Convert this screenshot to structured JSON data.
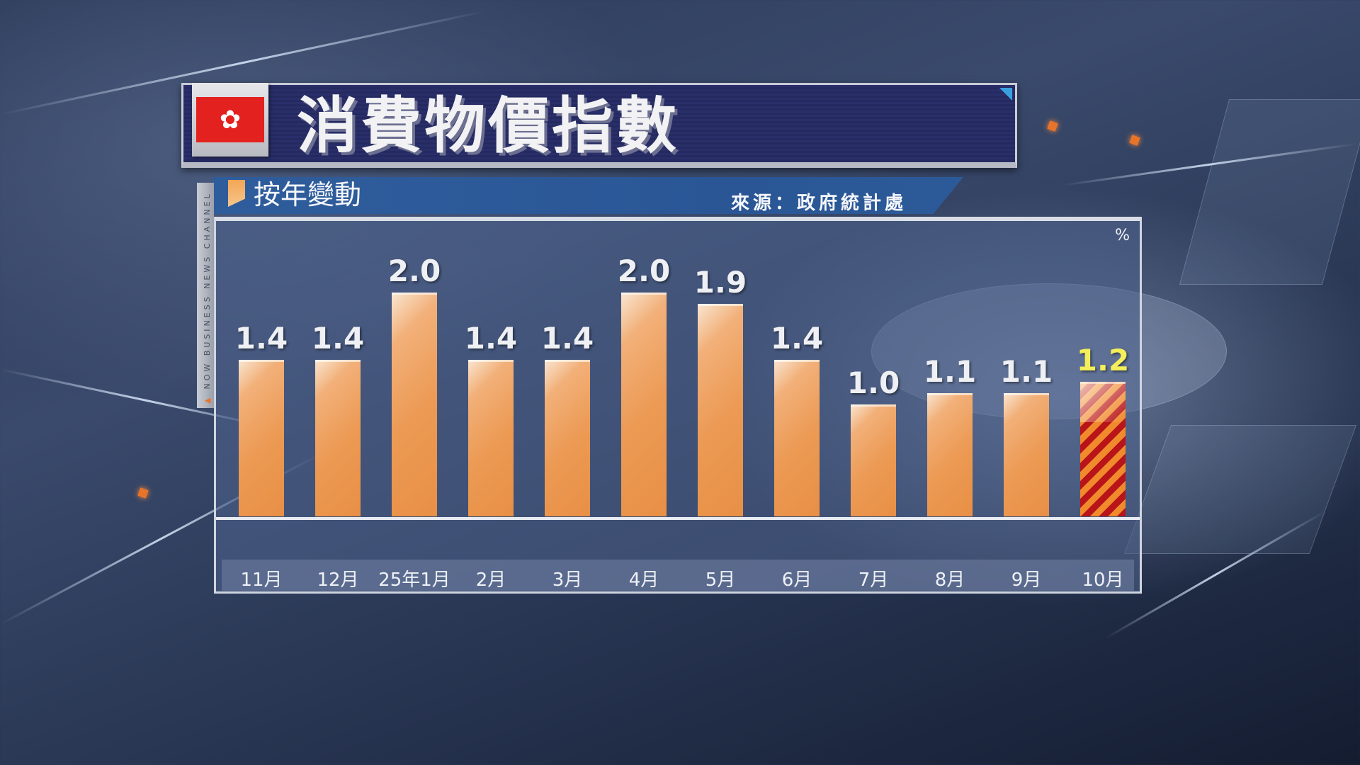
{
  "header": {
    "title": "消費物價指數",
    "flag_icon": "hong-kong-flag-icon",
    "flag_symbol": "✿"
  },
  "subheader": {
    "label": "按年變動",
    "source": "來源：政府統計處"
  },
  "channel": {
    "side_label": "NOW BUSINESS NEWS CHANNEL",
    "marker": "▲"
  },
  "chart": {
    "unit": "%",
    "bar_color": "#ec9a54",
    "highlight_colors": [
      "#f08a2c",
      "#b8141a"
    ],
    "highlight_value_color": "#f4ee5a"
  },
  "chart_data": {
    "type": "bar",
    "title": "消費物價指數",
    "subtitle": "按年變動",
    "source": "來源：政府統計處",
    "xlabel": "",
    "ylabel": "%",
    "categories": [
      "11月",
      "12月",
      "25年1月",
      "2月",
      "3月",
      "4月",
      "5月",
      "6月",
      "7月",
      "8月",
      "9月",
      "10月"
    ],
    "values": [
      1.4,
      1.4,
      2.0,
      1.4,
      1.4,
      2.0,
      1.9,
      1.4,
      1.0,
      1.1,
      1.1,
      1.2
    ],
    "value_labels": [
      "1.4",
      "1.4",
      "2.0",
      "1.4",
      "1.4",
      "2.0",
      "1.9",
      "1.4",
      "1.0",
      "1.1",
      "1.1",
      "1.2"
    ],
    "highlight_index": 11,
    "ylim": [
      0,
      2.2
    ],
    "grid": false,
    "legend": null
  }
}
